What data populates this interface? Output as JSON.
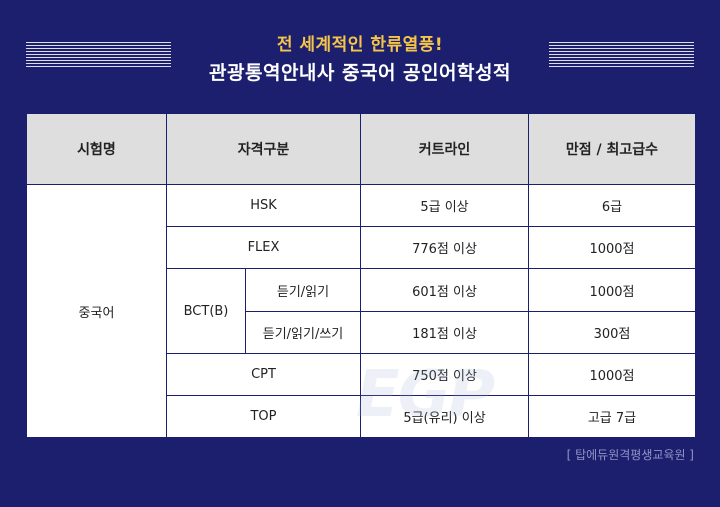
{
  "header": {
    "subtitle": "전 세계적인 한류열풍!",
    "title": "관광통역안내사 중국어 공인어학성적"
  },
  "table": {
    "headers": [
      "시험명",
      "자격구분",
      "커트라인",
      "만점 / 최고급수"
    ],
    "exam": "중국어",
    "rows": [
      {
        "qual": "HSK",
        "cutline": "5급 이상",
        "max": "6급"
      },
      {
        "qual": "FLEX",
        "cutline": "776점 이상",
        "max": "1000점"
      },
      {
        "qual": "BCT(B)",
        "sub": "듣기/읽기",
        "cutline": "601점 이상",
        "max": "1000점"
      },
      {
        "sub": "듣기/읽기/쓰기",
        "cutline": "181점 이상",
        "max": "300점"
      },
      {
        "qual": "CPT",
        "cutline": "750점 이상",
        "max": "1000점"
      },
      {
        "qual": "TOP",
        "cutline": "5급(유리) 이상",
        "max": "고급 7급"
      }
    ]
  },
  "watermark": "EGP",
  "source": "[ 탑에듀원격평생교육원 ]"
}
